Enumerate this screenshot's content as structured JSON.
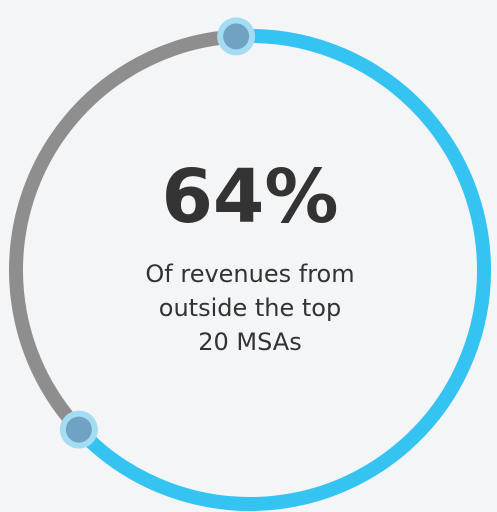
{
  "chart_data": {
    "type": "donut",
    "values": [
      64
    ],
    "value_labels": [
      "64%"
    ],
    "max": 100,
    "caption_lines": [
      "Of revenues from",
      "outside the top",
      "20 MSAs"
    ],
    "color": "#35c3f1",
    "track_color": "#8e8e8e"
  }
}
